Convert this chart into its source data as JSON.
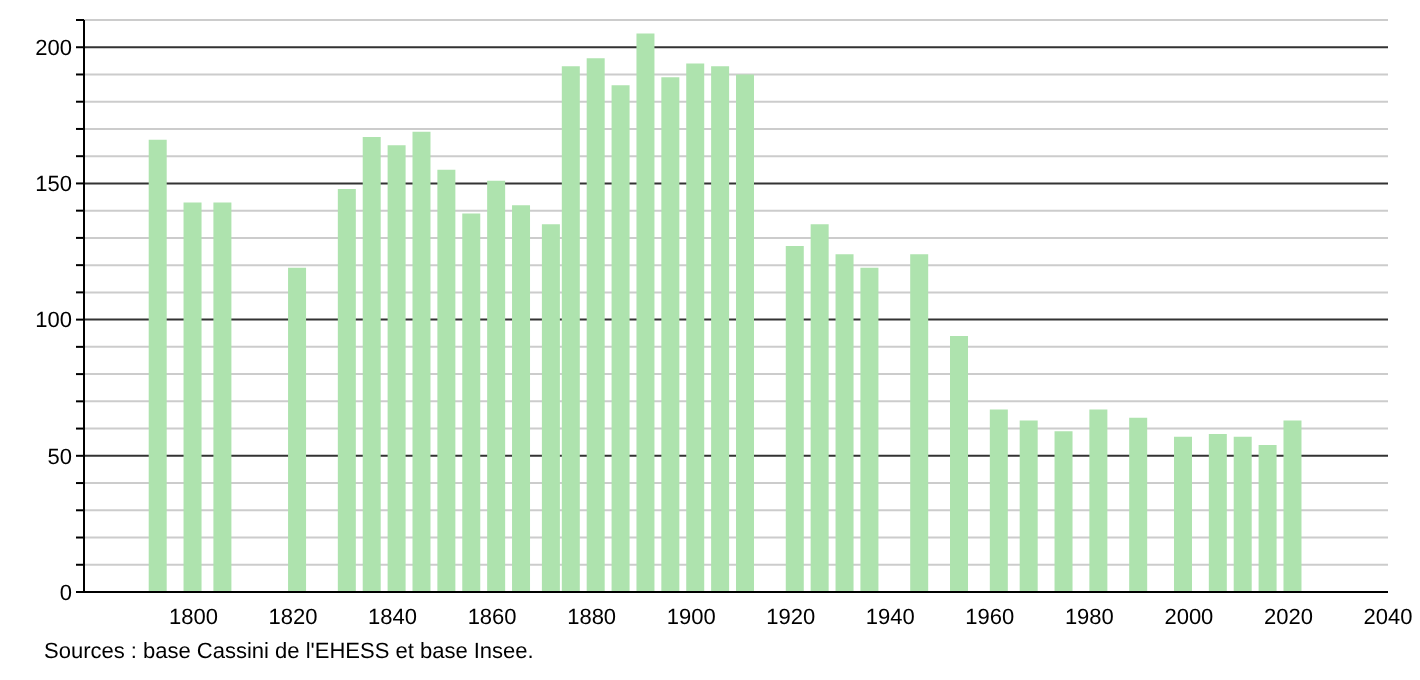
{
  "chart_data": {
    "type": "bar",
    "x": [
      1793,
      1800,
      1806,
      1821,
      1831,
      1836,
      1841,
      1846,
      1851,
      1856,
      1861,
      1866,
      1872,
      1876,
      1881,
      1886,
      1891,
      1896,
      1901,
      1906,
      1911,
      1921,
      1926,
      1931,
      1936,
      1946,
      1954,
      1962,
      1968,
      1975,
      1982,
      1990,
      1999,
      2006,
      2011,
      2016,
      2021
    ],
    "values": [
      166,
      143,
      143,
      119,
      148,
      167,
      164,
      169,
      155,
      139,
      151,
      142,
      135,
      193,
      196,
      186,
      205,
      189,
      194,
      193,
      190,
      127,
      135,
      124,
      119,
      124,
      94,
      67,
      63,
      59,
      67,
      64,
      57,
      58,
      57,
      54,
      63
    ],
    "color": "#aee3ae",
    "xlim": [
      1778,
      2040
    ],
    "xticks": [
      1800,
      1820,
      1840,
      1860,
      1880,
      1900,
      1920,
      1940,
      1960,
      1980,
      2000,
      2020,
      2040
    ],
    "ylim": [
      0,
      210
    ],
    "yticks": [
      0,
      {
        "value": 10,
        "label": null
      },
      {
        "value": 20,
        "label": null
      },
      {
        "value": 30,
        "label": null
      },
      {
        "value": 40,
        "label": null
      },
      50,
      {
        "value": 60,
        "label": null
      },
      {
        "value": 70,
        "label": null
      },
      {
        "value": 80,
        "label": null
      },
      {
        "value": 90,
        "label": null
      },
      100,
      {
        "value": 110,
        "label": null
      },
      {
        "value": 120,
        "label": null
      },
      {
        "value": 130,
        "label": null
      },
      {
        "value": 140,
        "label": null
      },
      150,
      {
        "value": 160,
        "label": null
      },
      {
        "value": 170,
        "label": null
      },
      {
        "value": 180,
        "label": null
      },
      {
        "value": 190,
        "label": null
      },
      200,
      {
        "value": 210,
        "label": null
      }
    ],
    "grid": "y",
    "annotations": [
      "Sources : base Cassini de l'EHESS et base Insee."
    ]
  }
}
